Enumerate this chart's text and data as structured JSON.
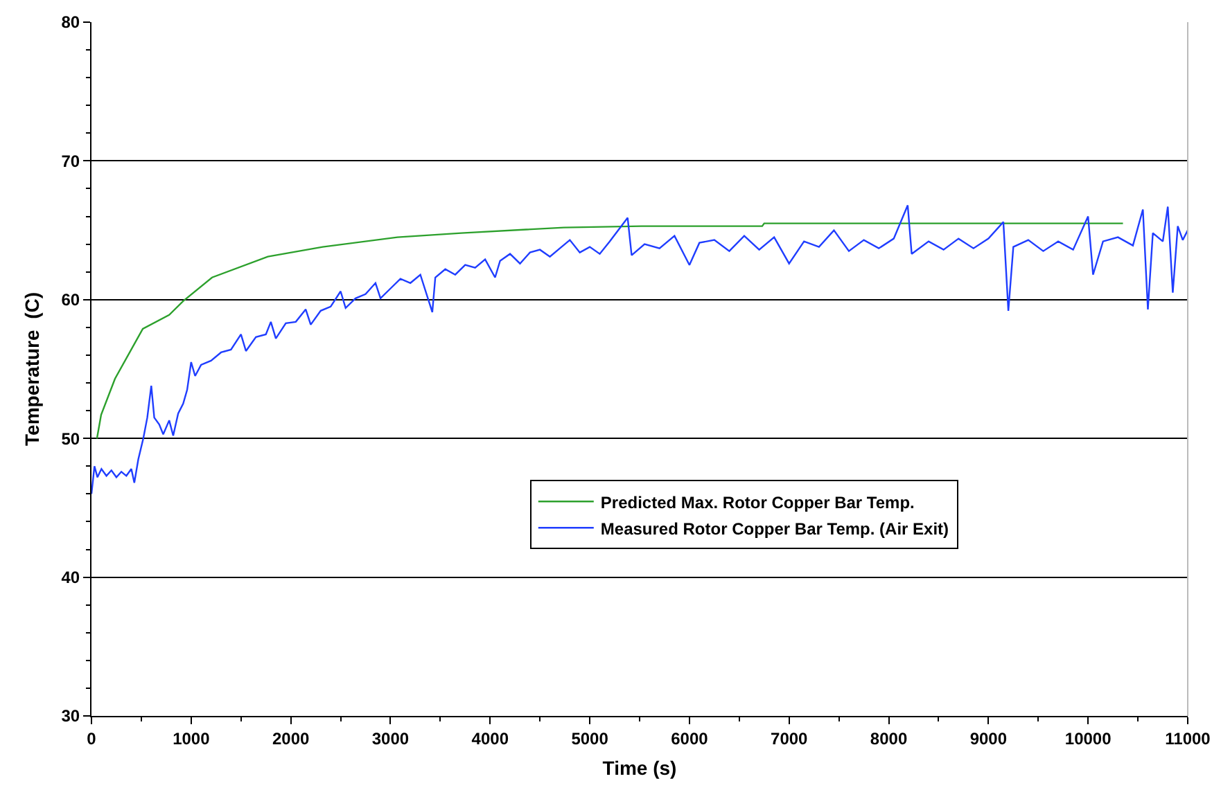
{
  "chart_data": {
    "type": "line",
    "xlabel": "Time (s)",
    "ylabel": "Temperature  (C)",
    "xlim": [
      0,
      11000
    ],
    "xticks": [
      0,
      1000,
      2000,
      3000,
      4000,
      5000,
      6000,
      7000,
      8000,
      9000,
      10000,
      11000
    ],
    "ylim": [
      30,
      80
    ],
    "yticks": [
      30,
      40,
      50,
      60,
      70,
      80
    ],
    "grid": "y",
    "legend": "bottom right",
    "marker": "none",
    "line_style": "solid",
    "series": [
      {
        "name": "Predicted Max. Rotor Copper Bar Temp.",
        "color": "#2ca02c",
        "x": [
          55,
          97,
          236,
          515,
          780,
          920,
          1210,
          1770,
          2320,
          3070,
          3710,
          4740,
          5520,
          6730,
          6750,
          8000,
          9000,
          10350
        ],
        "values": [
          50,
          51.7,
          54.3,
          57.9,
          58.9,
          59.9,
          61.6,
          63.1,
          63.8,
          64.5,
          64.8,
          65.2,
          65.3,
          65.3,
          65.5,
          65.5,
          65.5,
          65.5
        ]
      },
      {
        "name": "Measured Rotor Copper Bar Temp. (Air Exit)",
        "color": "#1f3dff",
        "x": [
          0,
          30,
          60,
          100,
          150,
          200,
          250,
          300,
          350,
          400,
          430,
          470,
          520,
          560,
          600,
          630,
          680,
          720,
          780,
          820,
          870,
          920,
          960,
          1000,
          1040,
          1100,
          1200,
          1300,
          1400,
          1500,
          1550,
          1650,
          1750,
          1800,
          1850,
          1950,
          2050,
          2150,
          2200,
          2300,
          2400,
          2500,
          2550,
          2650,
          2750,
          2850,
          2900,
          3000,
          3100,
          3200,
          3300,
          3420,
          3450,
          3550,
          3650,
          3750,
          3850,
          3950,
          4050,
          4100,
          4200,
          4300,
          4400,
          4500,
          4600,
          4700,
          4800,
          4900,
          5000,
          5100,
          5200,
          5380,
          5420,
          5550,
          5700,
          5850,
          6000,
          6100,
          6250,
          6400,
          6550,
          6700,
          6850,
          7000,
          7150,
          7300,
          7450,
          7600,
          7750,
          7900,
          8050,
          8190,
          8230,
          8400,
          8550,
          8700,
          8850,
          9000,
          9150,
          9200,
          9250,
          9400,
          9550,
          9700,
          9850,
          10000,
          10050,
          10150,
          10300,
          10450,
          10550,
          10600,
          10650,
          10750,
          10800,
          10850,
          10900,
          10950,
          11000
        ],
        "values": [
          46,
          48,
          47.2,
          47.8,
          47.3,
          47.7,
          47.2,
          47.6,
          47.3,
          47.8,
          46.8,
          48.5,
          50,
          51.5,
          53.8,
          51.5,
          51,
          50.3,
          51.3,
          50.2,
          51.8,
          52.5,
          53.5,
          55.5,
          54.5,
          55.3,
          55.6,
          56.2,
          56.4,
          57.5,
          56.3,
          57.3,
          57.5,
          58.4,
          57.2,
          58.3,
          58.4,
          59.3,
          58.2,
          59.2,
          59.5,
          60.6,
          59.4,
          60.1,
          60.4,
          61.2,
          60.1,
          60.8,
          61.5,
          61.2,
          61.8,
          59.1,
          61.6,
          62.2,
          61.8,
          62.5,
          62.3,
          62.9,
          61.6,
          62.8,
          63.3,
          62.6,
          63.4,
          63.6,
          63.1,
          63.7,
          64.3,
          63.4,
          63.8,
          63.3,
          64.2,
          65.9,
          63.2,
          64,
          63.7,
          64.6,
          62.5,
          64.1,
          64.3,
          63.5,
          64.6,
          63.6,
          64.5,
          62.6,
          64.2,
          63.8,
          65,
          63.5,
          64.3,
          63.7,
          64.4,
          66.8,
          63.3,
          64.2,
          63.6,
          64.4,
          63.7,
          64.4,
          65.6,
          59.2,
          63.8,
          64.3,
          63.5,
          64.2,
          63.6,
          66,
          61.8,
          64.2,
          64.5,
          63.9,
          66.5,
          59.3,
          64.8,
          64.2,
          66.7,
          60.5,
          65.3,
          64.3,
          65
        ]
      }
    ]
  }
}
